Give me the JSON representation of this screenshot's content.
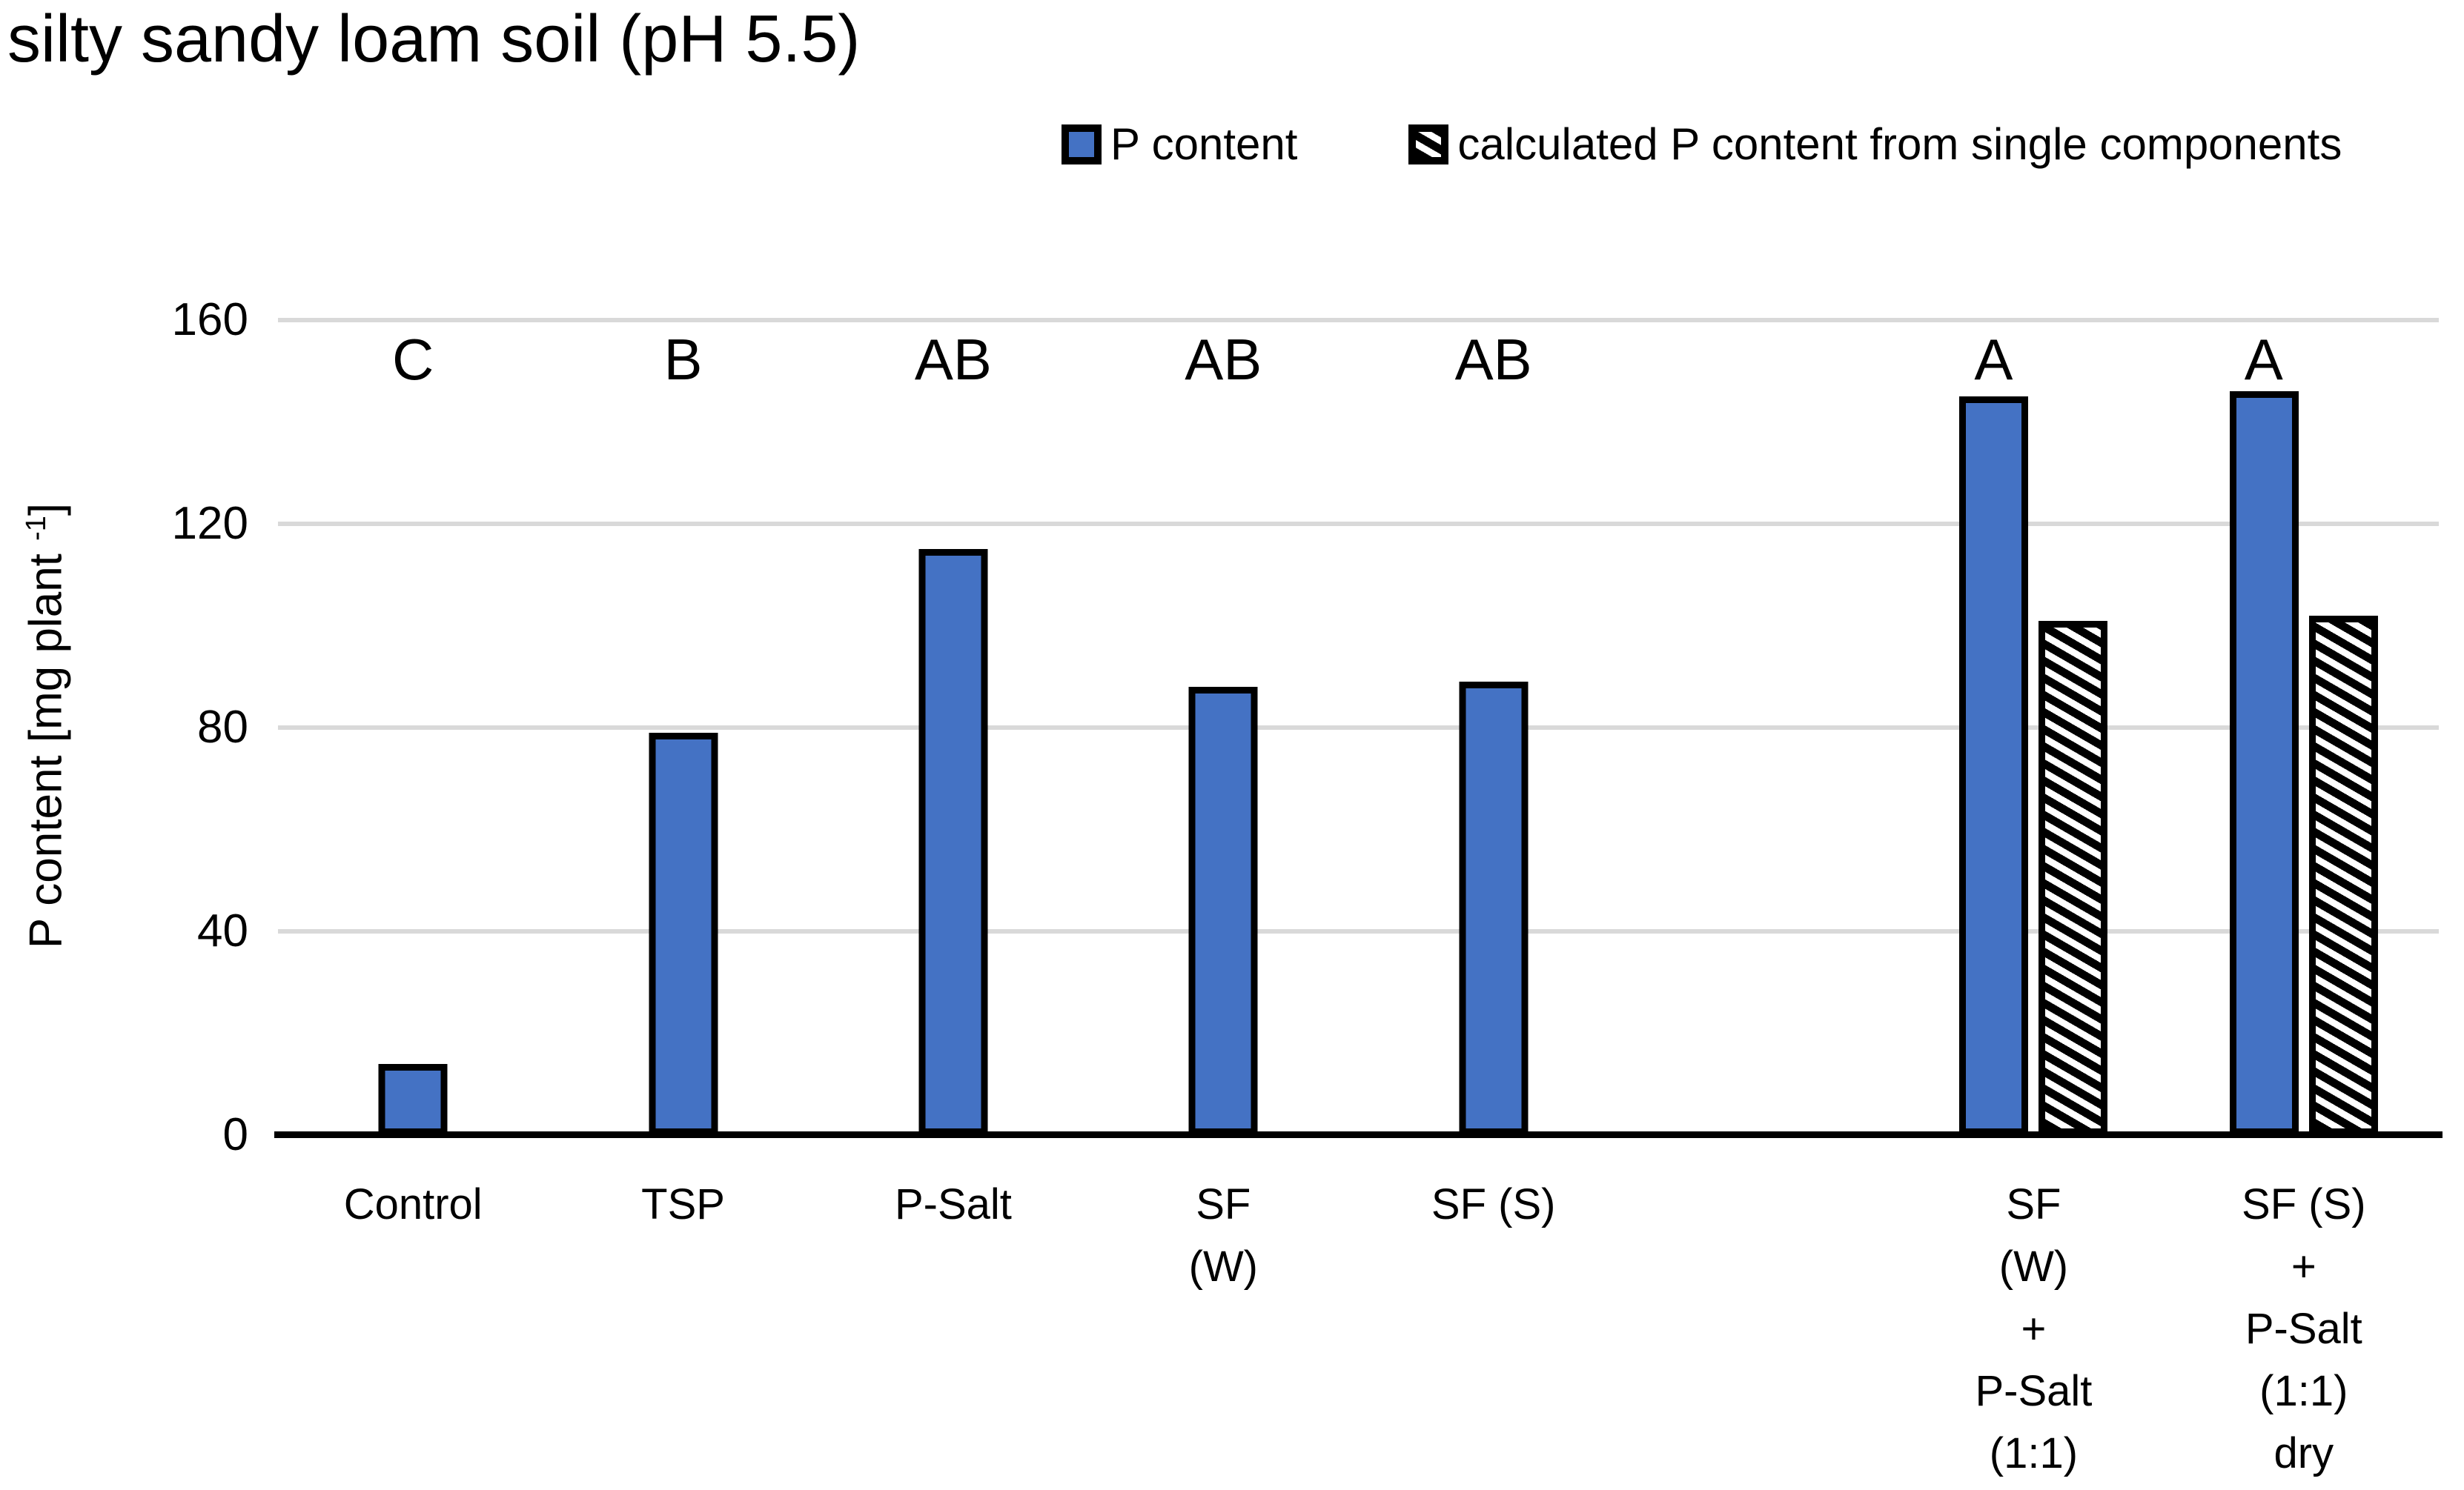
{
  "title": "silty sandy loam soil (pH 5.5)",
  "legend": {
    "position": "top",
    "items": [
      {
        "label": "P content",
        "swatch": "solid-blue"
      },
      {
        "label": "calculated P content from single components",
        "swatch": "hatched-diagonal"
      }
    ]
  },
  "y_axis": {
    "label_main": "P content [mg plant",
    "label_superscript": "-1",
    "label_close": "]",
    "tick_labels": [
      "160",
      "120",
      "80",
      "40",
      "0"
    ]
  },
  "colors": {
    "bar_blue": "#4472C4",
    "bar_border": "#000000",
    "hatch_black": "#000000",
    "hatch_white": "#ffffff",
    "gridline_gray": "#D9D9D9",
    "axis_black": "#000000"
  },
  "chart_data": {
    "type": "bar",
    "title": "silty sandy loam soil (pH 5.5)",
    "xlabel": "",
    "ylabel": "P content [mg plant -1]",
    "ylim": [
      0,
      160
    ],
    "yticks": [
      0,
      40,
      80,
      120,
      160
    ],
    "gridlines": [
      40,
      80,
      120,
      160
    ],
    "grid": "horizontal",
    "legend_position": "top",
    "categories": [
      "Control",
      "TSP",
      "P-Salt",
      "SF (W)",
      "SF (S)",
      "SF (W) + P-Salt (1:1) dry",
      "SF (S) + P-Salt (1:1) dry"
    ],
    "category_lines": [
      [
        "Control"
      ],
      [
        "TSP"
      ],
      [
        "P-Salt"
      ],
      [
        "SF (W)"
      ],
      [
        "SF (S)"
      ],
      [
        "SF (W)",
        "+",
        "P-Salt",
        "(1:1)",
        "dry"
      ],
      [
        "SF (S)",
        "+",
        "P-Salt",
        "(1:1)",
        "dry"
      ]
    ],
    "significance_letters": [
      "C",
      "B",
      "AB",
      "AB",
      "AB",
      "A",
      "A"
    ],
    "series": [
      {
        "name": "P content",
        "style": "solid",
        "values": [
          14,
          79,
          115,
          88,
          89,
          145,
          146
        ]
      },
      {
        "name": "calculated P content from single components",
        "style": "hatched",
        "values": [
          null,
          null,
          null,
          null,
          null,
          101,
          102
        ]
      }
    ],
    "slot_order": [
      0,
      1,
      2,
      3,
      4,
      null,
      5,
      6
    ]
  }
}
